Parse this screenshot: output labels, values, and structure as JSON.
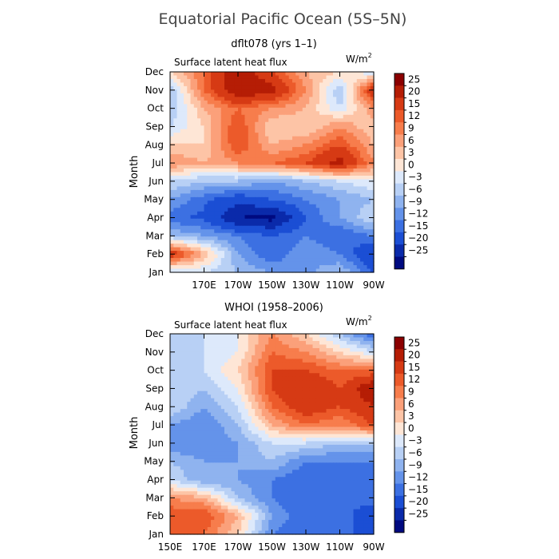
{
  "title": "Equatorial Pacific Ocean (5S–5N)",
  "colorbar": {
    "levels": [
      -25,
      -20,
      -15,
      -12,
      -9,
      -6,
      -3,
      0,
      3,
      6,
      9,
      12,
      15,
      20,
      25
    ],
    "labels": [
      "25",
      "20",
      "15",
      "12",
      "9",
      "6",
      "3",
      "0",
      "−3",
      "−6",
      "−9",
      "−12",
      "−15",
      "−20",
      "−25"
    ],
    "colors": [
      "#8b0000",
      "#b51d05",
      "#d63a14",
      "#ec5a2a",
      "#f77d4c",
      "#fba07a",
      "#fdc4a6",
      "#fee6d6",
      "#dde9fb",
      "#b8d0f5",
      "#8fb3ef",
      "#6493ea",
      "#3c70e2",
      "#1b4ed4",
      "#0a2aaa",
      "#000a80"
    ]
  },
  "chart_data": [
    {
      "type": "heatmap",
      "title": "dflt078 (yrs 1–1)",
      "subtitle": "Surface latent heat flux",
      "units": "W/m²",
      "ylabel": "Month",
      "x": [
        "150E",
        "170E",
        "170W",
        "150W",
        "130W",
        "110W",
        "90W"
      ],
      "x_ticklabels": [
        "170E",
        "170W",
        "150W",
        "130W",
        "110W",
        "90W"
      ],
      "y": [
        "Jan",
        "Feb",
        "Mar",
        "Apr",
        "May",
        "Jun",
        "Jul",
        "Aug",
        "Sep",
        "Oct",
        "Nov",
        "Dec"
      ],
      "y_ticklabels": [
        "Jan",
        "Feb",
        "Mar",
        "Apr",
        "May",
        "Jun",
        "Jul",
        "Aug",
        "Sep",
        "Oct",
        "Nov",
        "Dec"
      ],
      "z": [
        [
          -4,
          -3,
          -6,
          -9,
          -10,
          -6,
          -15
        ],
        [
          19,
          6,
          -9,
          -15,
          -9,
          -12,
          -20
        ],
        [
          -6,
          -9,
          -12,
          -15,
          -12,
          -15,
          -12
        ],
        [
          -14,
          -16,
          -25,
          -27,
          -15,
          -9,
          -3
        ],
        [
          -9,
          -14,
          -18,
          -15,
          -12,
          -9,
          -6
        ],
        [
          -3,
          -6,
          -6,
          -9,
          -6,
          -3,
          0
        ],
        [
          9,
          6,
          9,
          12,
          15,
          22,
          9
        ],
        [
          3,
          3,
          15,
          6,
          9,
          15,
          6
        ],
        [
          -3,
          3,
          15,
          3,
          3,
          9,
          3
        ],
        [
          -6,
          6,
          12,
          9,
          6,
          -3,
          9
        ],
        [
          -6,
          12,
          25,
          22,
          9,
          -6,
          20
        ],
        [
          3,
          12,
          25,
          15,
          6,
          3,
          -3
        ]
      ]
    },
    {
      "type": "heatmap",
      "title": "WHOI (1958–2006)",
      "subtitle": "Surface latent heat flux",
      "units": "W/m²",
      "ylabel": "Month",
      "x": [
        "150E",
        "170E",
        "170W",
        "150W",
        "130W",
        "110W",
        "90W"
      ],
      "x_ticklabels": [
        "150E",
        "170E",
        "170W",
        "150W",
        "130W",
        "110W",
        "90W"
      ],
      "y": [
        "Jan",
        "Feb",
        "Mar",
        "Apr",
        "May",
        "Jun",
        "Jul",
        "Aug",
        "Sep",
        "Oct",
        "Nov",
        "Dec"
      ],
      "y_ticklabels": [
        "Jan",
        "Feb",
        "Mar",
        "Apr",
        "May",
        "Jun",
        "Jul",
        "Aug",
        "Sep",
        "Oct",
        "Nov",
        "Dec"
      ],
      "z": [
        [
          12,
          12,
          3,
          -12,
          -15,
          -15,
          -15
        ],
        [
          15,
          15,
          6,
          -9,
          -15,
          -12,
          -20
        ],
        [
          9,
          6,
          -6,
          -12,
          -15,
          -15,
          -12
        ],
        [
          -3,
          -9,
          -9,
          -12,
          -15,
          -15,
          -12
        ],
        [
          -6,
          -9,
          -9,
          -6,
          -12,
          -12,
          -12
        ],
        [
          -12,
          -12,
          -9,
          -3,
          -3,
          -6,
          -6
        ],
        [
          -9,
          -12,
          -6,
          6,
          12,
          9,
          15
        ],
        [
          -3,
          -9,
          -3,
          12,
          18,
          15,
          20
        ],
        [
          -3,
          -6,
          0,
          15,
          20,
          15,
          25
        ],
        [
          -3,
          -3,
          3,
          15,
          15,
          12,
          12
        ],
        [
          -6,
          -3,
          0,
          12,
          9,
          3,
          -3
        ],
        [
          -3,
          -3,
          0,
          9,
          3,
          -6,
          -15
        ]
      ]
    }
  ]
}
